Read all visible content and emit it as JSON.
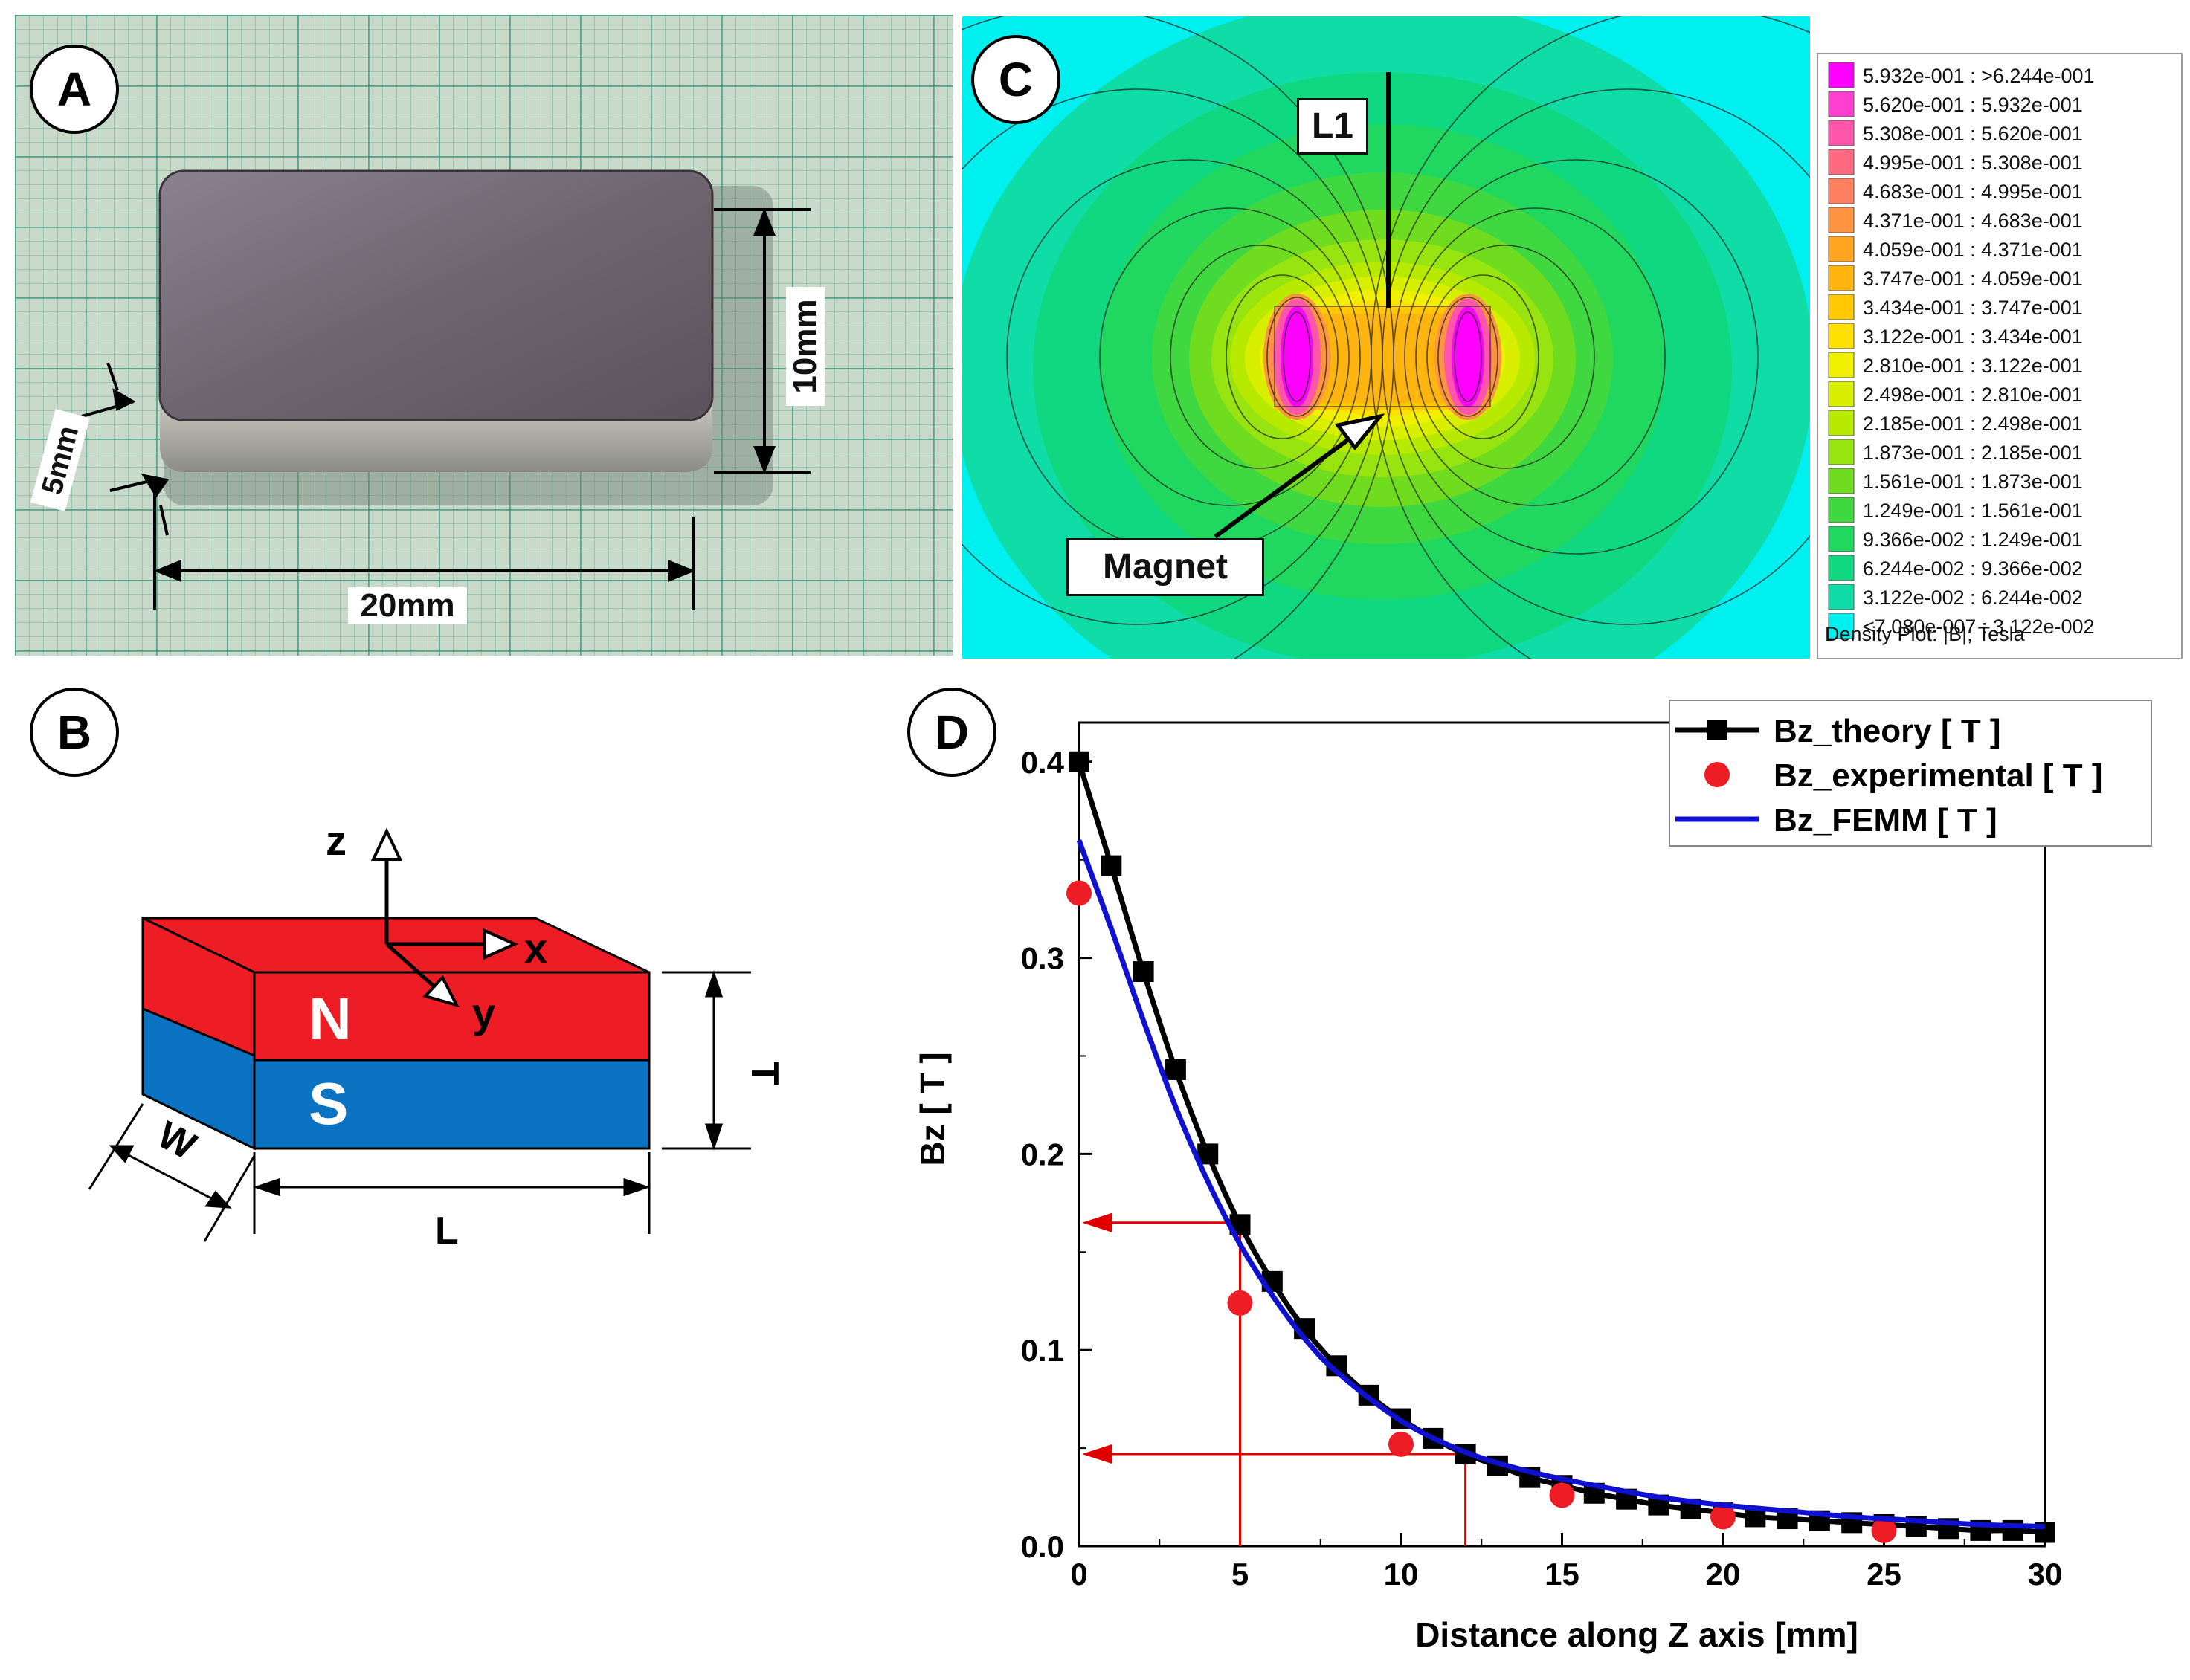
{
  "panels": {
    "a": {
      "letter": "A",
      "dims": {
        "width": "20mm",
        "height": "10mm",
        "thickness": "5mm"
      }
    },
    "b": {
      "letter": "B",
      "poles": {
        "north": "N",
        "south": "S"
      },
      "axes": {
        "x": "x",
        "y": "y",
        "z": "z"
      },
      "dims": {
        "length": "L",
        "width": "W",
        "thickness": "T"
      },
      "colors": {
        "north": "#ee1c25",
        "south": "#0b73c2"
      }
    },
    "c": {
      "letter": "C",
      "line_label": "L1",
      "magnet_label": "Magnet",
      "legend_title": "Density Plot: |B|, Tesla",
      "legend": [
        {
          "label": "5.932e-001 : >6.244e-001",
          "color": "#ff00ff"
        },
        {
          "label": "5.620e-001 : 5.932e-001",
          "color": "#ff3fd0"
        },
        {
          "label": "5.308e-001 : 5.620e-001",
          "color": "#ff55aa"
        },
        {
          "label": "4.995e-001 : 5.308e-001",
          "color": "#ff6a80"
        },
        {
          "label": "4.683e-001 : 4.995e-001",
          "color": "#ff8060"
        },
        {
          "label": "4.371e-001 : 4.683e-001",
          "color": "#ff9440"
        },
        {
          "label": "4.059e-001 : 4.371e-001",
          "color": "#ffa520"
        },
        {
          "label": "3.747e-001 : 4.059e-001",
          "color": "#ffb510"
        },
        {
          "label": "3.434e-001 : 3.747e-001",
          "color": "#ffc800"
        },
        {
          "label": "3.122e-001 : 3.434e-001",
          "color": "#ffe000"
        },
        {
          "label": "2.810e-001 : 3.122e-001",
          "color": "#f0f000"
        },
        {
          "label": "2.498e-001 : 2.810e-001",
          "color": "#d8f000"
        },
        {
          "label": "2.185e-001 : 2.498e-001",
          "color": "#b8ea00"
        },
        {
          "label": "1.873e-001 : 2.185e-001",
          "color": "#98e410"
        },
        {
          "label": "1.561e-001 : 1.873e-001",
          "color": "#70dc20"
        },
        {
          "label": "1.249e-001 : 1.561e-001",
          "color": "#40d840"
        },
        {
          "label": "9.366e-002 : 1.249e-001",
          "color": "#20d860"
        },
        {
          "label": "6.244e-002 : 9.366e-002",
          "color": "#10d880"
        },
        {
          "label": "3.122e-002 : 6.244e-002",
          "color": "#10dca8"
        },
        {
          "label": "<7.080e-007 : 3.122e-002",
          "color": "#00f0f0"
        }
      ]
    },
    "d": {
      "letter": "D"
    }
  },
  "chart_data": {
    "type": "line",
    "xlabel": "Distance along Z axis [mm]",
    "ylabel": "Bz [ T ]",
    "xlim": [
      0,
      30
    ],
    "ylim": [
      0,
      0.42
    ],
    "xticks": [
      "0",
      "5",
      "10",
      "15",
      "20",
      "25",
      "30"
    ],
    "yticks": [
      "0.0",
      "0.1",
      "0.2",
      "0.3",
      "0.4"
    ],
    "grid": false,
    "legend_position": "top-right",
    "series": [
      {
        "name": "Bz_theory [ T ]",
        "style": "line-square",
        "color": "#000000",
        "x": [
          0,
          1,
          2,
          3,
          4,
          5,
          6,
          7,
          8,
          9,
          10,
          11,
          12,
          13,
          14,
          15,
          16,
          17,
          18,
          19,
          20,
          21,
          22,
          23,
          24,
          25,
          26,
          27,
          28,
          29,
          30
        ],
        "y": [
          0.4,
          0.347,
          0.293,
          0.243,
          0.2,
          0.164,
          0.135,
          0.111,
          0.092,
          0.077,
          0.065,
          0.055,
          0.047,
          0.041,
          0.035,
          0.031,
          0.027,
          0.024,
          0.021,
          0.019,
          0.017,
          0.015,
          0.014,
          0.013,
          0.012,
          0.011,
          0.01,
          0.009,
          0.008,
          0.008,
          0.007
        ]
      },
      {
        "name": "Bz_experimental [ T ]",
        "style": "circle",
        "color": "#ee1c25",
        "x": [
          0,
          5,
          10,
          15,
          20,
          25
        ],
        "y": [
          0.333,
          0.124,
          0.052,
          0.026,
          0.015,
          0.008
        ]
      },
      {
        "name": "Bz_FEMM [ T ]",
        "style": "line",
        "color": "#1010d0",
        "x": [
          0,
          1,
          2,
          3,
          4,
          5,
          6,
          7,
          8,
          10,
          12,
          14,
          16,
          18,
          20,
          22,
          24,
          26,
          28,
          30
        ],
        "y": [
          0.36,
          0.315,
          0.268,
          0.224,
          0.186,
          0.154,
          0.128,
          0.106,
          0.089,
          0.064,
          0.048,
          0.038,
          0.031,
          0.025,
          0.021,
          0.018,
          0.015,
          0.013,
          0.011,
          0.01
        ]
      }
    ],
    "annotations": [
      {
        "type": "crosshair",
        "x": 5,
        "y": 0.165,
        "color": "#e00000"
      },
      {
        "type": "crosshair",
        "x": 12,
        "y": 0.047,
        "color": "#e00000"
      }
    ]
  }
}
